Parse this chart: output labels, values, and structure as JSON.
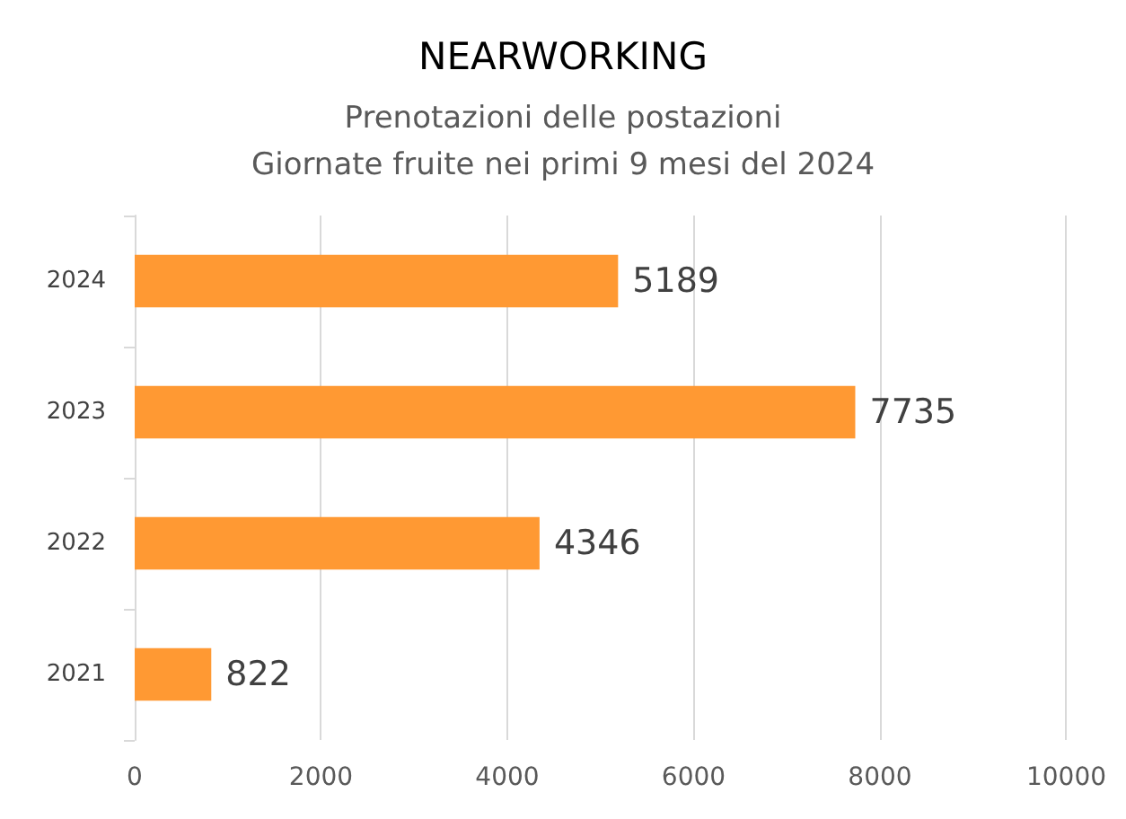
{
  "chart_data": {
    "type": "bar",
    "orientation": "horizontal",
    "title": "NEARWORKING",
    "subtitle": "Prenotazioni delle postazioni\nGiornate fruite nei primi 9 mesi del 2024",
    "categories": [
      "2024",
      "2023",
      "2022",
      "2021"
    ],
    "values": [
      5189,
      7735,
      4346,
      822
    ],
    "color": "#ff9933",
    "xlim": [
      0,
      10000
    ],
    "xticks": [
      0,
      2000,
      4000,
      6000,
      8000,
      10000
    ],
    "grid": "x",
    "data_labels": true
  }
}
